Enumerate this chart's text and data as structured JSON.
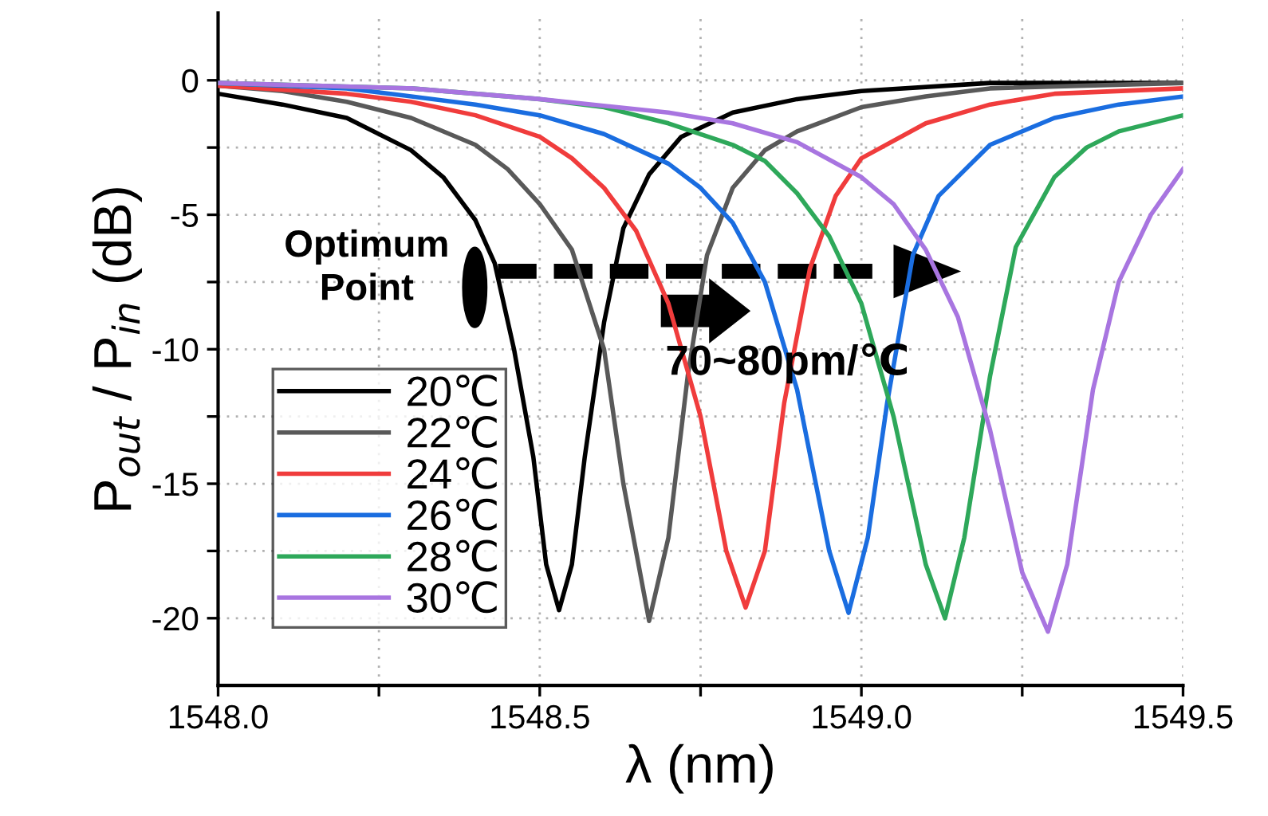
{
  "chart_data": {
    "type": "line",
    "xlabel": "λ (nm)",
    "ylabel": "P$_{out}$ / P$_{in}$ (dB)",
    "xlim": [
      1548.0,
      1549.5
    ],
    "ylim": [
      -22.5,
      2.5
    ],
    "xticks": [
      {
        "value": 1548.0,
        "label": "1548.0"
      },
      {
        "value": 1548.25,
        "label": null
      },
      {
        "value": 1548.5,
        "label": "1548.5"
      },
      {
        "value": 1548.75,
        "label": null
      },
      {
        "value": 1549.0,
        "label": "1549.0"
      },
      {
        "value": 1549.25,
        "label": null
      },
      {
        "value": 1549.5,
        "label": "1549.5"
      }
    ],
    "yticks": [
      -20,
      {
        "value": -17.5,
        "label": null
      },
      -15,
      {
        "value": -12.5,
        "label": null
      },
      -10,
      {
        "value": -7.5,
        "label": null
      },
      -5,
      {
        "value": -2.5,
        "label": null
      },
      0
    ],
    "grid": true,
    "legend": "bottom left",
    "line_style": "solid",
    "marker": "none",
    "series": [
      {
        "name": "20℃",
        "color": "#000000",
        "x": [
          1548.0,
          1548.1,
          1548.2,
          1548.3,
          1548.35,
          1548.4,
          1548.43,
          1548.46,
          1548.49,
          1548.51,
          1548.53,
          1548.55,
          1548.57,
          1548.6,
          1548.63,
          1548.67,
          1548.72,
          1548.8,
          1548.9,
          1549.0,
          1549.2,
          1549.5
        ],
        "values": [
          -0.5,
          -0.9,
          -1.4,
          -2.6,
          -3.6,
          -5.2,
          -6.8,
          -10,
          -14,
          -18,
          -19.7,
          -18,
          -14,
          -9,
          -5.5,
          -3.5,
          -2.1,
          -1.2,
          -0.7,
          -0.4,
          -0.1,
          -0.1
        ]
      },
      {
        "name": "22℃",
        "color": "#595959",
        "x": [
          1548.0,
          1548.1,
          1548.2,
          1548.3,
          1548.4,
          1548.45,
          1548.5,
          1548.55,
          1548.6,
          1548.63,
          1548.67,
          1548.7,
          1548.73,
          1548.76,
          1548.8,
          1548.85,
          1548.9,
          1549.0,
          1549.1,
          1549.2,
          1549.5
        ],
        "values": [
          -0.2,
          -0.4,
          -0.8,
          -1.4,
          -2.4,
          -3.3,
          -4.6,
          -6.3,
          -10,
          -15,
          -20.1,
          -17,
          -11,
          -6.5,
          -4,
          -2.6,
          -1.9,
          -1.0,
          -0.6,
          -0.3,
          -0.1
        ]
      },
      {
        "name": "24℃",
        "color": "#f03c3c",
        "x": [
          1548.0,
          1548.2,
          1548.3,
          1548.4,
          1548.5,
          1548.55,
          1548.6,
          1548.65,
          1548.7,
          1548.75,
          1548.79,
          1548.82,
          1548.85,
          1548.88,
          1548.92,
          1548.96,
          1549.0,
          1549.1,
          1549.2,
          1549.3,
          1549.5
        ],
        "values": [
          -0.2,
          -0.5,
          -0.8,
          -1.3,
          -2.1,
          -2.9,
          -4.0,
          -5.6,
          -8.3,
          -12.5,
          -17.5,
          -19.6,
          -17.5,
          -12,
          -7,
          -4.3,
          -2.9,
          -1.6,
          -0.9,
          -0.5,
          -0.3
        ]
      },
      {
        "name": "26℃",
        "color": "#1a6de0",
        "x": [
          1548.0,
          1548.2,
          1548.4,
          1548.5,
          1548.6,
          1548.7,
          1548.75,
          1548.8,
          1548.85,
          1548.9,
          1548.95,
          1548.98,
          1549.01,
          1549.04,
          1549.08,
          1549.12,
          1549.2,
          1549.3,
          1549.4,
          1549.5
        ],
        "values": [
          -0.1,
          -0.3,
          -0.9,
          -1.3,
          -2.0,
          -3.1,
          -4.0,
          -5.3,
          -7.5,
          -11.5,
          -17.5,
          -19.8,
          -17,
          -12,
          -6.5,
          -4.3,
          -2.4,
          -1.4,
          -0.9,
          -0.6
        ]
      },
      {
        "name": "28℃",
        "color": "#2ea85a",
        "x": [
          1548.0,
          1548.3,
          1548.5,
          1548.6,
          1548.7,
          1548.8,
          1548.85,
          1548.9,
          1548.95,
          1549.0,
          1549.05,
          1549.1,
          1549.13,
          1549.16,
          1549.2,
          1549.24,
          1549.3,
          1549.35,
          1549.4,
          1549.5
        ],
        "values": [
          -0.1,
          -0.3,
          -0.7,
          -1.0,
          -1.6,
          -2.4,
          -3.0,
          -4.2,
          -5.8,
          -8.3,
          -12.5,
          -18,
          -20.0,
          -17,
          -11,
          -6.2,
          -3.6,
          -2.5,
          -1.9,
          -1.3
        ]
      },
      {
        "name": "30℃",
        "color": "#a875e0",
        "x": [
          1548.0,
          1548.3,
          1548.5,
          1548.7,
          1548.8,
          1548.9,
          1549.0,
          1549.05,
          1549.1,
          1549.15,
          1549.2,
          1549.25,
          1549.29,
          1549.32,
          1549.36,
          1549.4,
          1549.45,
          1549.5
        ],
        "values": [
          -0.1,
          -0.3,
          -0.7,
          -1.2,
          -1.6,
          -2.3,
          -3.6,
          -4.6,
          -6.3,
          -8.8,
          -13,
          -18.3,
          -20.5,
          -18,
          -11.5,
          -7.5,
          -5.0,
          -3.3
        ]
      }
    ],
    "annotations": [
      "Optimum\nPoint",
      "70~80pm/℃"
    ]
  }
}
